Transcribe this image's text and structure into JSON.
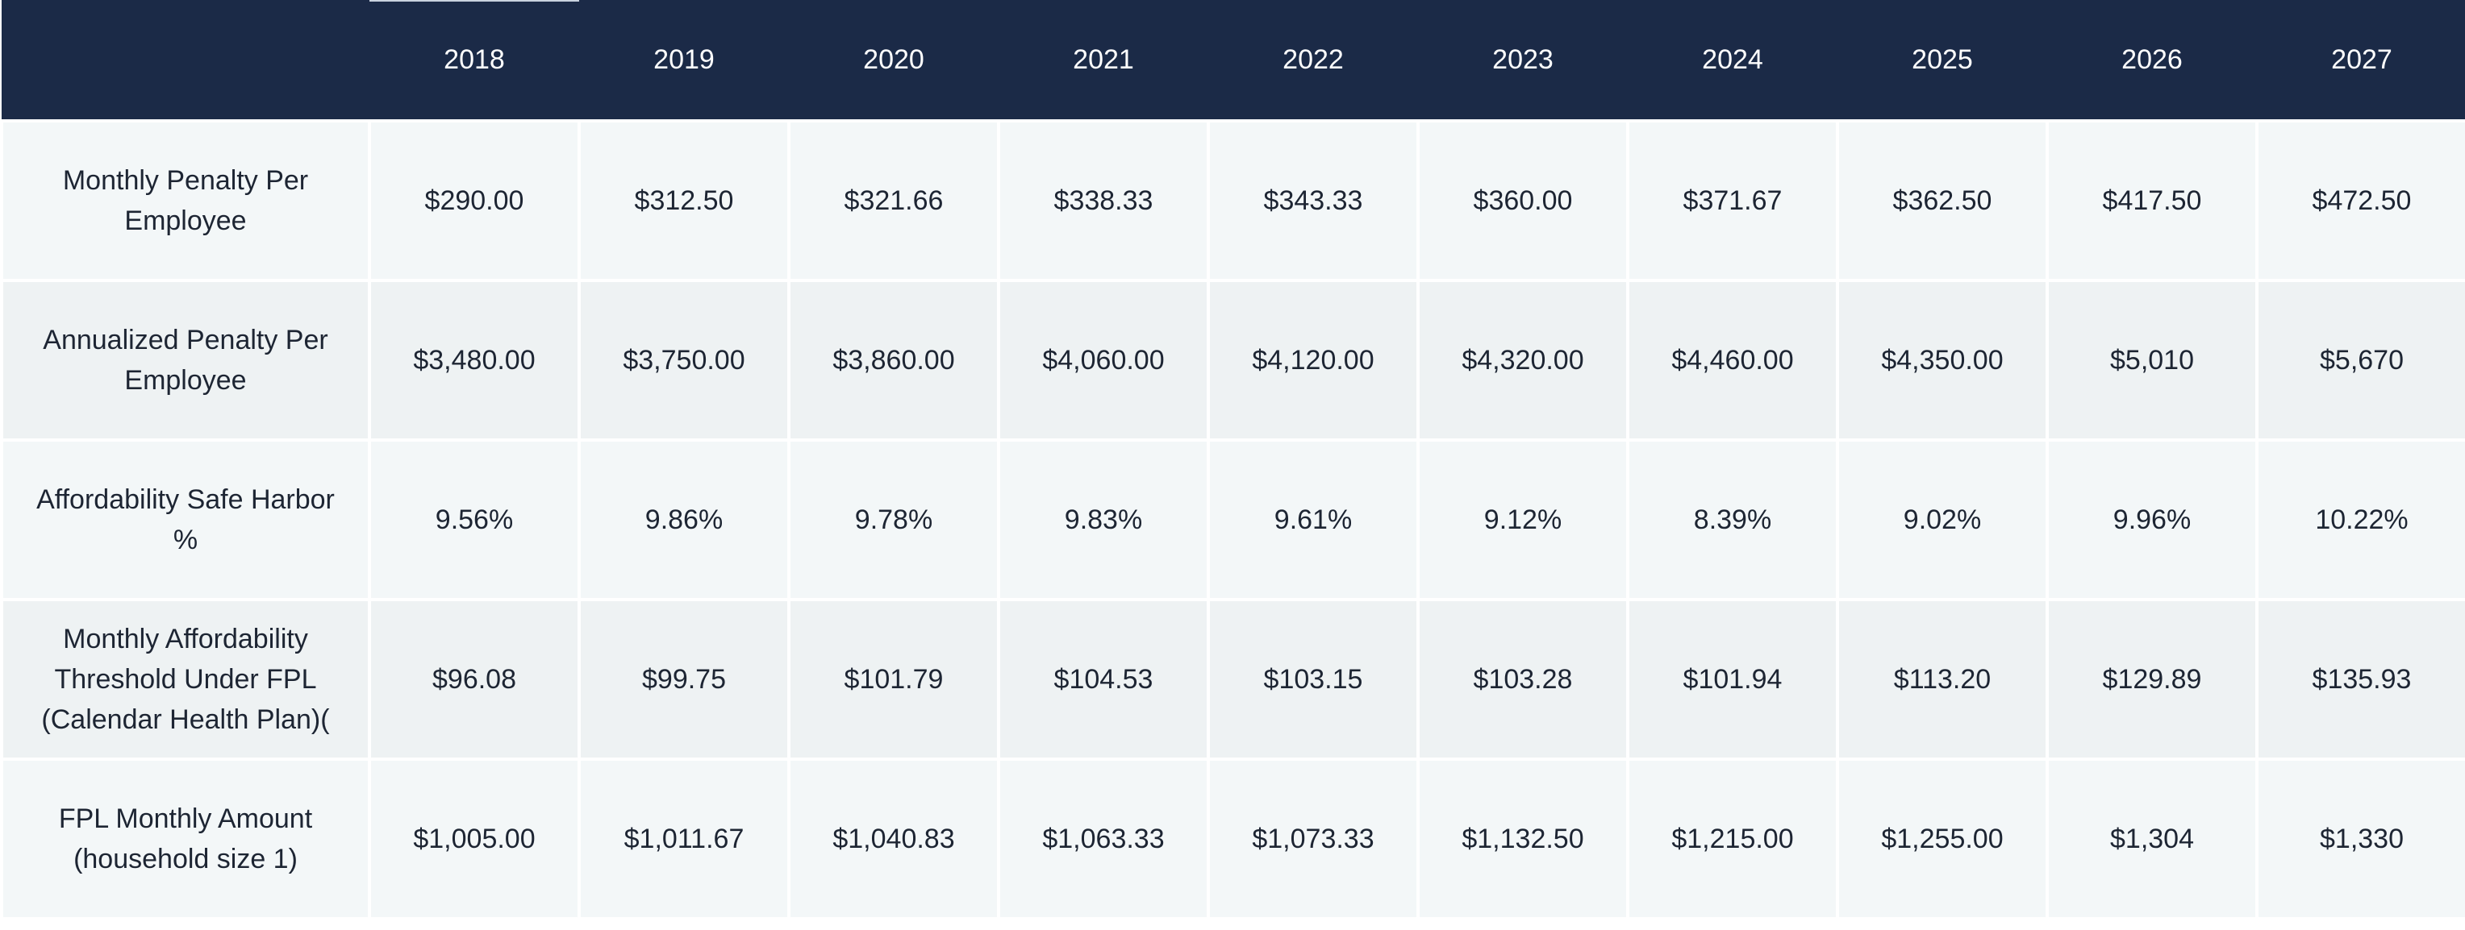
{
  "table": {
    "corner": "",
    "years": [
      "2018",
      "2019",
      "2020",
      "2021",
      "2022",
      "2023",
      "2024",
      "2025",
      "2026",
      "2027"
    ],
    "rows": [
      {
        "label": "Monthly Penalty Per Employee",
        "values": [
          "$290.00",
          "$312.50",
          "$321.66",
          "$338.33",
          "$343.33",
          "$360.00",
          "$371.67",
          "$362.50",
          "$417.50",
          "$472.50"
        ]
      },
      {
        "label": "Annualized Penalty Per Employee",
        "values": [
          "$3,480.00",
          "$3,750.00",
          "$3,860.00",
          "$4,060.00",
          "$4,120.00",
          "$4,320.00",
          "$4,460.00",
          "$4,350.00",
          "$5,010",
          "$5,670"
        ]
      },
      {
        "label": "Affordability Safe Harbor %",
        "values": [
          "9.56%",
          "9.86%",
          "9.78%",
          "9.83%",
          "9.61%",
          "9.12%",
          "8.39%",
          "9.02%",
          "9.96%",
          "10.22%"
        ]
      },
      {
        "label": "Monthly Affordability Threshold Under FPL (Calendar Health Plan)(",
        "values": [
          "$96.08",
          "$99.75",
          "$101.79",
          "$104.53",
          "$103.15",
          "$103.28",
          "$101.94",
          "$113.20",
          "$129.89",
          "$135.93"
        ]
      },
      {
        "label": "FPL Monthly Amount (household size 1)",
        "values": [
          "$1,005.00",
          "$1,011.67",
          "$1,040.83",
          "$1,063.33",
          "$1,073.33",
          "$1,132.50",
          "$1,215.00",
          "$1,255.00",
          "$1,304",
          "$1,330"
        ]
      }
    ]
  }
}
